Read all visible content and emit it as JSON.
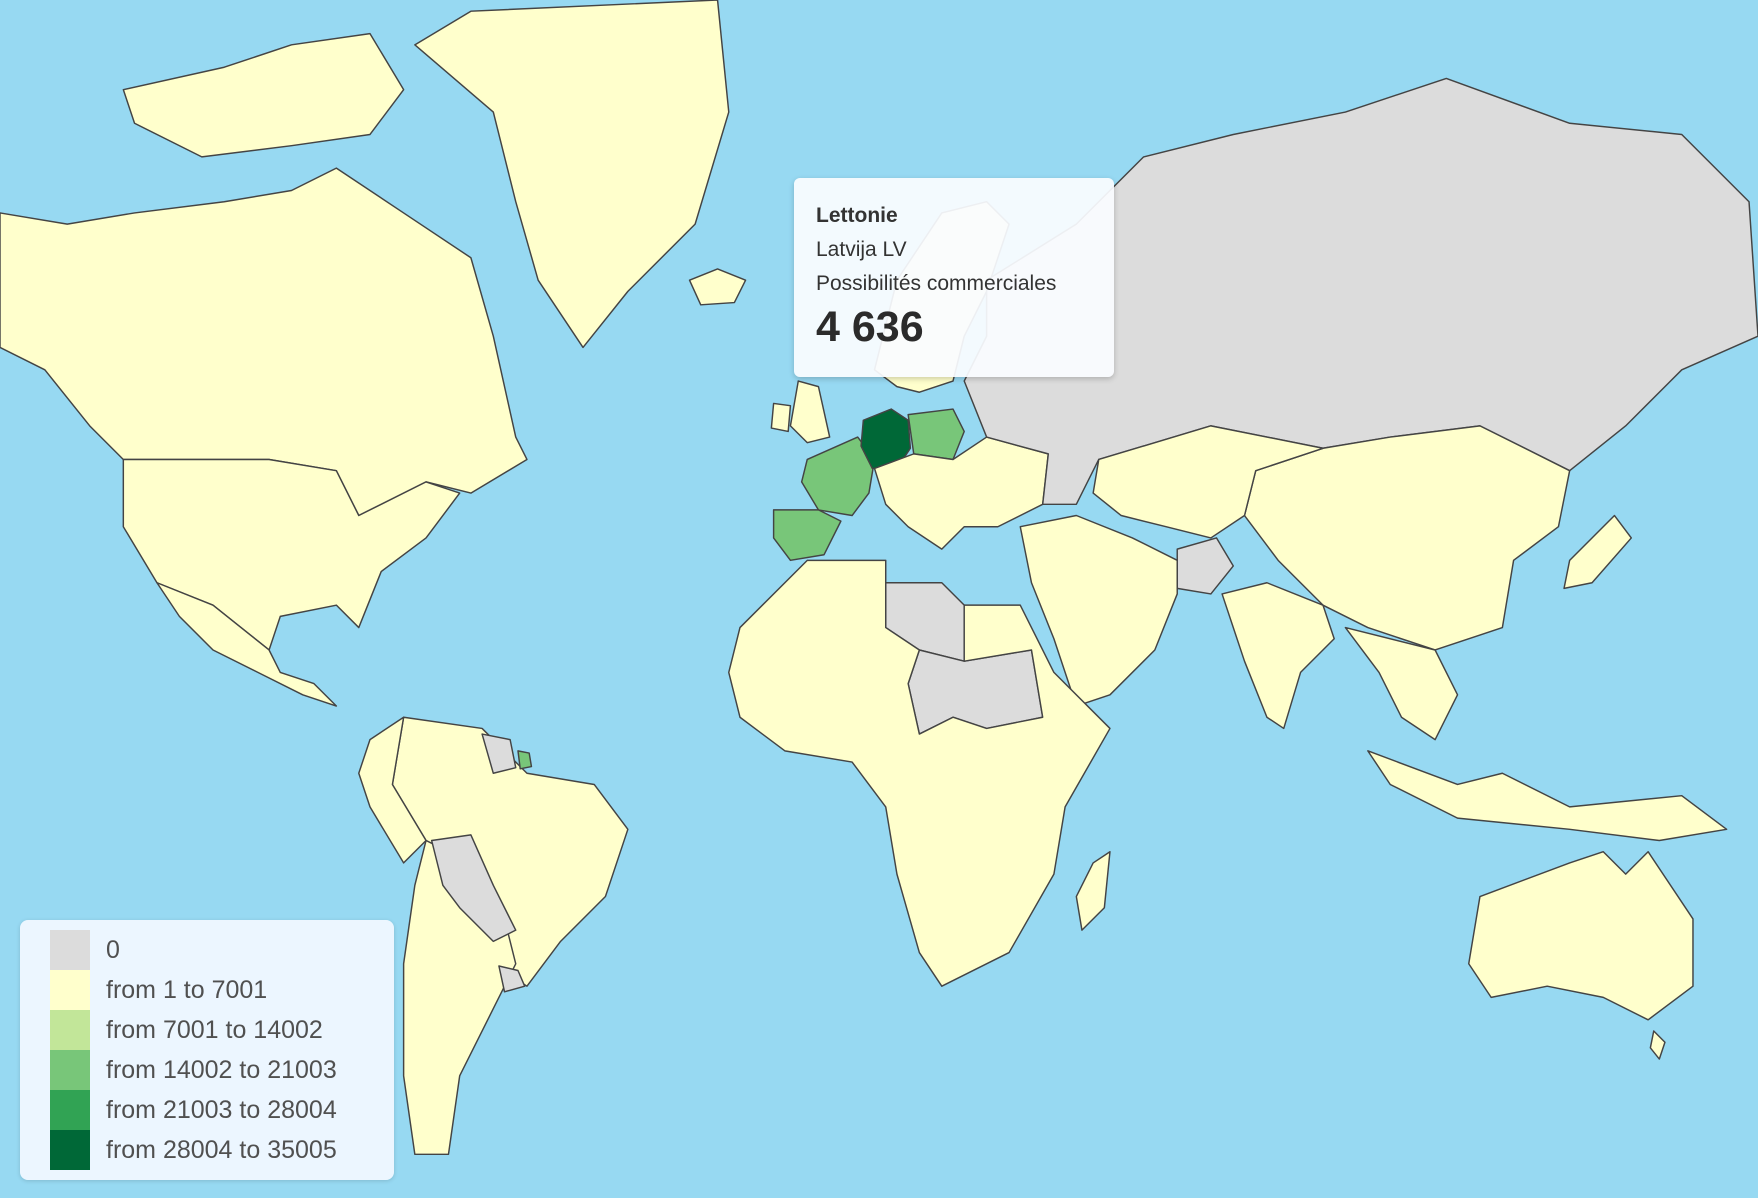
{
  "colors": {
    "ocean": "#97d9f2",
    "zero": "#dcdcdc",
    "c1": "#ffffcc",
    "c2": "#c2e699",
    "c3": "#78c679",
    "c4": "#31a354",
    "c5": "#006837",
    "border": "#444444"
  },
  "legend": {
    "items": [
      {
        "label": "0",
        "color": "#dcdcdc"
      },
      {
        "label": "from 1 to 7001",
        "color": "#ffffcc"
      },
      {
        "label": "from 7001 to 14002",
        "color": "#c2e699"
      },
      {
        "label": "from 14002 to 21003",
        "color": "#78c679"
      },
      {
        "label": "from 21003 to 28004",
        "color": "#31a354"
      },
      {
        "label": "from 28004 to 35005",
        "color": "#006837"
      }
    ]
  },
  "tooltip": {
    "title": "Lettonie",
    "subtitle": "Latvija LV",
    "metric": "Possibilités commerciales",
    "value": "4 636"
  }
}
